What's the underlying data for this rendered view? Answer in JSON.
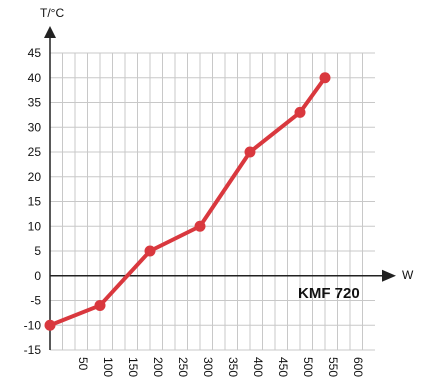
{
  "chart_data": {
    "type": "line",
    "title": "",
    "xlabel": "W",
    "ylabel": "T/°C",
    "annotation": "KMF 720",
    "x_ticks": [
      "50",
      "100",
      "150",
      "200",
      "250",
      "300",
      "350",
      "400",
      "450",
      "500",
      "550",
      "600"
    ],
    "y_ticks": [
      "45",
      "40",
      "35",
      "30",
      "25",
      "20",
      "15",
      "10",
      "5",
      "0",
      "-5",
      "-10",
      "-15"
    ],
    "xlim": [
      0,
      650
    ],
    "ylim": [
      -15,
      45
    ],
    "grid": true,
    "series": [
      {
        "x": [
          0,
          100,
          200,
          300,
          400,
          500,
          550
        ],
        "y": [
          -10,
          -6,
          5,
          10,
          25,
          33,
          40
        ],
        "color": "#d9383e"
      }
    ],
    "grid_color": "#c8c8c8",
    "axis_color": "#222222"
  }
}
